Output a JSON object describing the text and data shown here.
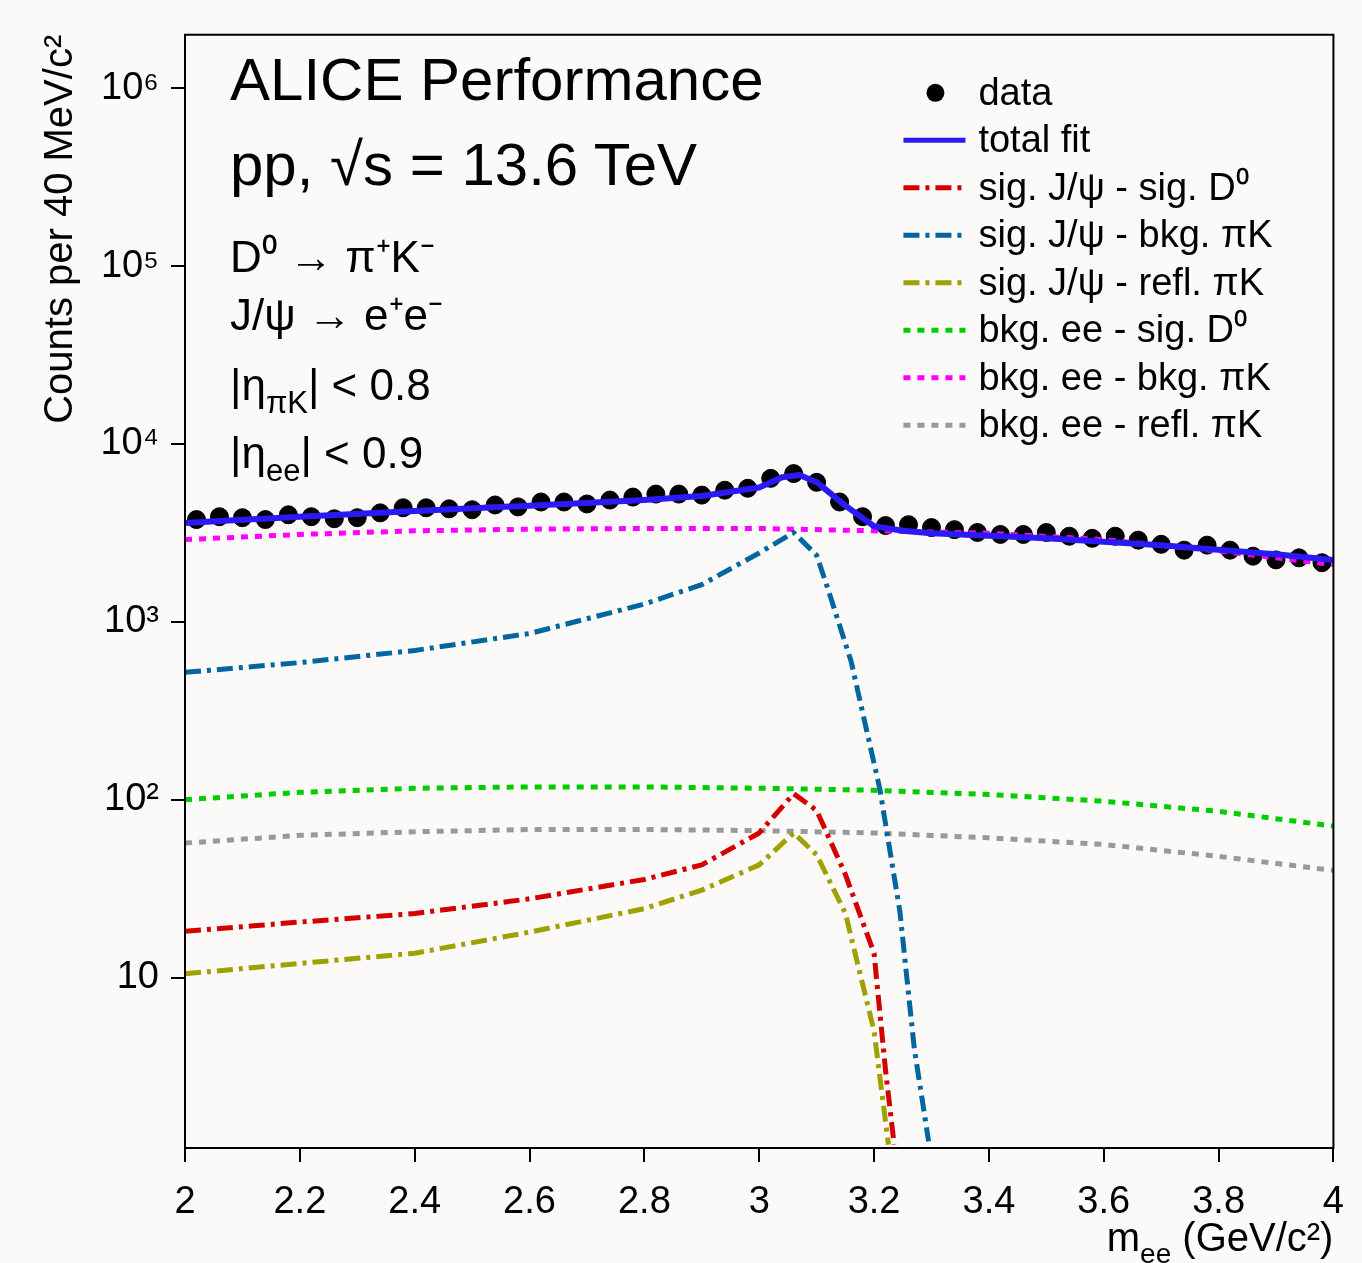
{
  "chart_data": {
    "type": "line",
    "xlabel": "m$_{ee}$ (GeV/c²)",
    "ylabel": "Counts per 40 MeV/c²",
    "annotations": [
      "ALICE Performance",
      "pp, √s = 13.6 TeV",
      "D⁰ → π⁺K⁻",
      "J/ψ → e⁺e⁻",
      "|η$_{πK}$| < 0.8",
      "|η$_{ee}$| < 0.9"
    ],
    "xlim": [
      2,
      4
    ],
    "xticks": [
      2,
      2.2,
      2.4,
      2.6,
      2.8,
      3,
      3.2,
      3.4,
      3.6,
      3.8,
      4
    ],
    "ylim": [
      1.1,
      2000000
    ],
    "yticks": [
      {
        "value": 10,
        "label": "10"
      },
      {
        "value": 100,
        "label": "10²"
      },
      {
        "value": 1000,
        "label": "10³"
      },
      {
        "value": 10000,
        "label": "10⁴"
      },
      {
        "value": 100000,
        "label": "10⁵"
      },
      {
        "value": 1000000,
        "label": "10⁶"
      }
    ],
    "log": "y",
    "grid": false,
    "legend": "top right",
    "series": [
      {
        "name": "data",
        "type": "scatter",
        "marker": "circle",
        "color": "#000000",
        "x": [
          2.02,
          2.06,
          2.1,
          2.14,
          2.18,
          2.22,
          2.26,
          2.3,
          2.34,
          2.38,
          2.42,
          2.46,
          2.5,
          2.54,
          2.58,
          2.62,
          2.66,
          2.7,
          2.74,
          2.78,
          2.82,
          2.86,
          2.9,
          2.94,
          2.98,
          3.02,
          3.06,
          3.1,
          3.14,
          3.18,
          3.22,
          3.26,
          3.3,
          3.34,
          3.38,
          3.42,
          3.46,
          3.5,
          3.54,
          3.58,
          3.62,
          3.66,
          3.7,
          3.74,
          3.78,
          3.82,
          3.86,
          3.9,
          3.94,
          3.98
        ],
        "values": [
          3760,
          3900,
          3850,
          3760,
          4000,
          3900,
          3800,
          3850,
          4100,
          4380,
          4380,
          4320,
          4270,
          4540,
          4430,
          4720,
          4720,
          4600,
          4840,
          5030,
          5230,
          5230,
          5160,
          5500,
          5640,
          6410,
          6820,
          6090,
          4720,
          3900,
          3480,
          3520,
          3390,
          3300,
          3180,
          3100,
          3100,
          3180,
          3030,
          2950,
          3030,
          2880,
          2730,
          2530,
          2700,
          2530,
          2340,
          2230,
          2290,
          2150
        ]
      },
      {
        "name": "total fit",
        "line_style": "solid",
        "color": "#2a1bf5",
        "x": [
          2,
          2.2,
          2.4,
          2.6,
          2.8,
          2.9,
          3,
          3.04,
          3.07,
          3.1,
          3.15,
          3.2,
          3.25,
          3.3,
          3.5,
          3.7,
          3.9,
          4
        ],
        "values": [
          3600,
          3900,
          4200,
          4500,
          4850,
          5100,
          5700,
          6500,
          6700,
          6100,
          4500,
          3450,
          3250,
          3150,
          2950,
          2700,
          2400,
          2230
        ]
      },
      {
        "name": "sig. J/ψ - sig. D⁰",
        "line_style": "dashed",
        "color": "#d40000",
        "x": [
          2,
          2.2,
          2.4,
          2.6,
          2.8,
          2.9,
          3,
          3.06,
          3.1,
          3.15,
          3.2,
          3.22,
          3.235
        ],
        "values": [
          18.2,
          20.5,
          22.9,
          27.7,
          35.6,
          43,
          65,
          108,
          87,
          38,
          13.7,
          3,
          1.15
        ]
      },
      {
        "name": "sig. J/ψ - bkg. πK",
        "line_style": "dashed",
        "color": "#0066a0",
        "x": [
          2,
          2.2,
          2.4,
          2.6,
          2.8,
          2.9,
          3,
          3.06,
          3.1,
          3.12,
          3.16,
          3.21,
          3.245,
          3.27,
          3.295
        ],
        "values": [
          520,
          590,
          690,
          860,
          1260,
          1620,
          2440,
          3180,
          2370,
          1520,
          600,
          115,
          23.5,
          4,
          1.2
        ]
      },
      {
        "name": "sig. J/ψ - refl. πK",
        "line_style": "dashed",
        "color": "#a0a000",
        "x": [
          2,
          2.2,
          2.4,
          2.6,
          2.8,
          2.9,
          3,
          3.06,
          3.1,
          3.15,
          3.2,
          3.225
        ],
        "values": [
          10.5,
          12,
          13.7,
          18,
          24.4,
          31,
          43,
          65,
          49,
          23,
          5,
          1.15
        ]
      },
      {
        "name": "bkg. ee - sig. D⁰",
        "line_style": "dotted",
        "color": "#00cc00",
        "x": [
          2,
          2.2,
          2.4,
          2.6,
          2.8,
          3,
          3.2,
          3.4,
          3.6,
          3.8,
          4
        ],
        "values": [
          100,
          110,
          116,
          118,
          118,
          116,
          113,
          107,
          98,
          86,
          71
        ]
      },
      {
        "name": "bkg. ee - bkg. πK",
        "line_style": "dotted",
        "color": "#ff00ff",
        "x": [
          2,
          2.2,
          2.4,
          2.6,
          2.8,
          3,
          3.2,
          3.4,
          3.6,
          3.8,
          4
        ],
        "values": [
          2900,
          3100,
          3250,
          3320,
          3350,
          3350,
          3250,
          3150,
          2900,
          2500,
          2100
        ]
      },
      {
        "name": "bkg. ee - refl. πK",
        "line_style": "dotted",
        "color": "#999999",
        "x": [
          2,
          2.2,
          2.4,
          2.6,
          2.8,
          3,
          3.2,
          3.4,
          3.6,
          3.8,
          4
        ],
        "values": [
          57,
          63,
          66,
          68,
          68,
          67,
          65,
          61,
          56,
          48,
          40
        ]
      }
    ]
  }
}
